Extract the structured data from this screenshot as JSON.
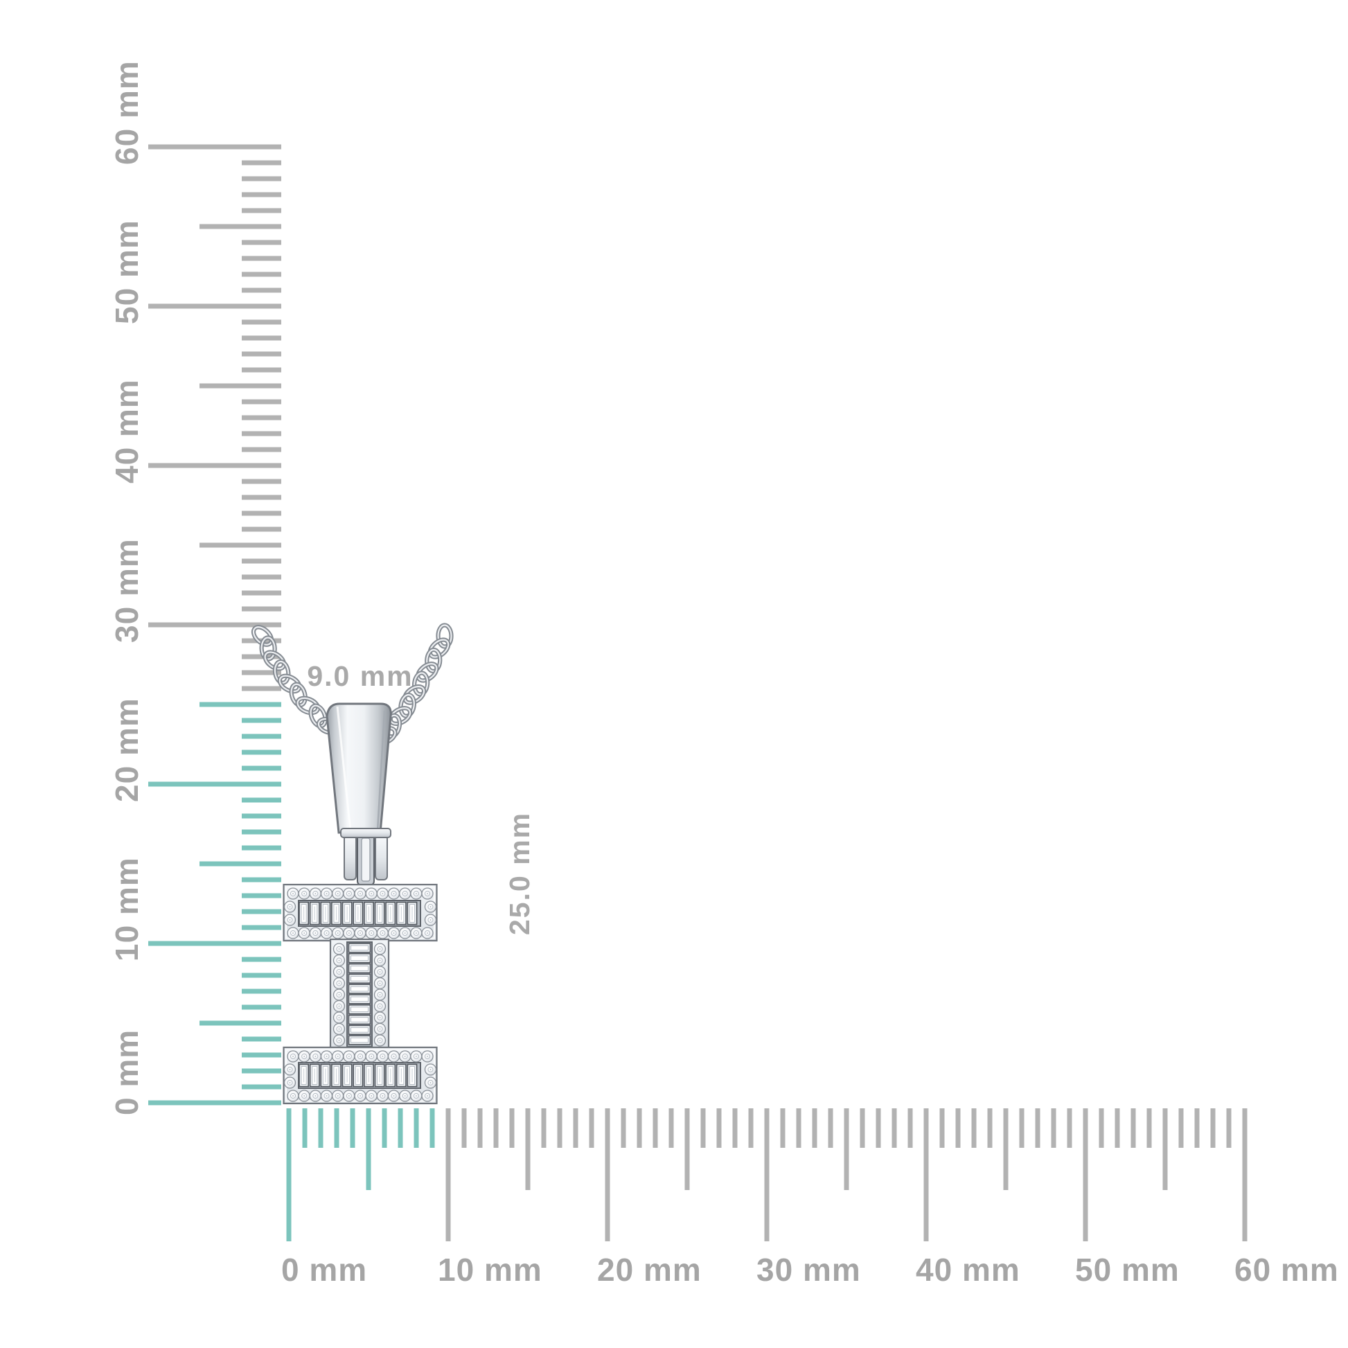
{
  "figure": {
    "kind": "jewelry-dimension-diagram",
    "subject": "letter-i-diamond-pendant-on-curb-chain"
  },
  "annotations": {
    "pendant_width": "9.0 mm",
    "pendant_height": "25.0 mm"
  },
  "rulers": {
    "vertical": {
      "unit": "mm",
      "min": 0,
      "max": 60,
      "major_step": 10,
      "half_step": 5,
      "highlight_to": 25,
      "labels": [
        "0 mm",
        "10 mm",
        "20 mm",
        "30 mm",
        "40 mm",
        "50 mm",
        "60 mm"
      ]
    },
    "horizontal": {
      "unit": "mm",
      "min": 0,
      "max": 60,
      "major_step": 10,
      "half_step": 5,
      "highlight_to": 9,
      "labels": [
        "0 mm",
        "10 mm",
        "20 mm",
        "30 mm",
        "40 mm",
        "50 mm",
        "60 mm"
      ]
    }
  },
  "colors": {
    "background": "#ffffff",
    "highlight_teal": "#7cc4bc",
    "tick_gray": "#b2b2b2",
    "label_gray": "#a5a5a5",
    "annotation_gray": "#a9a9a9",
    "metal_outline": "#71767d",
    "metal_light": "#f5f7f9",
    "metal_mid": "#e5e9ec",
    "metal_dark": "#9aa0a7",
    "diamond_white": "#ffffff"
  }
}
